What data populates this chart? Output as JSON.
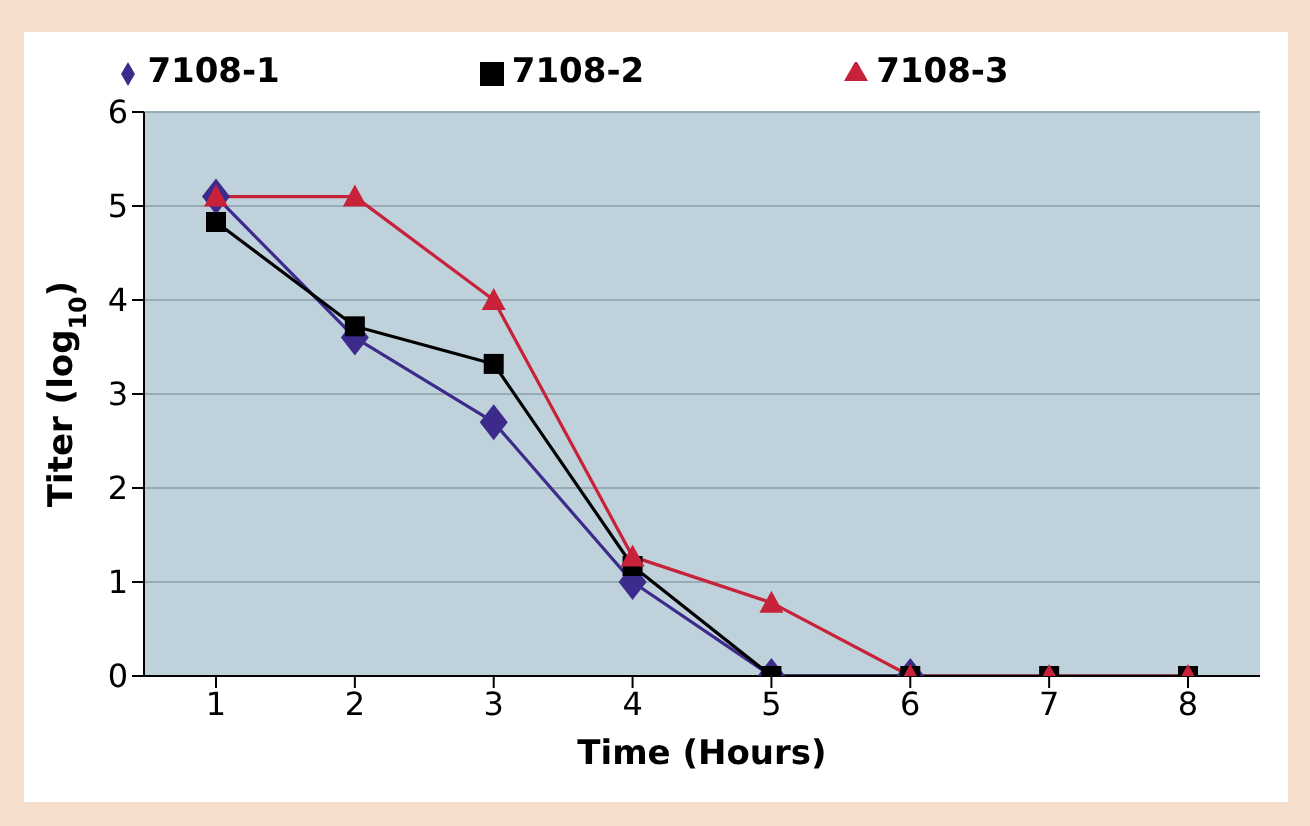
{
  "chart_data": {
    "type": "line",
    "xlabel": "Time (Hours)",
    "ylabel": "Titer (log$_{10}$)",
    "categories": [
      "1",
      "2",
      "3",
      "4",
      "5",
      "6",
      "7",
      "8"
    ],
    "series": [
      {
        "name": "7108-1",
        "color": "#3d2b8c",
        "marker": "diamond",
        "values": [
          5.1,
          3.6,
          2.7,
          1.0,
          0,
          0,
          null,
          null
        ]
      },
      {
        "name": "7108-2",
        "color": "#000000",
        "marker": "square",
        "values": [
          4.83,
          3.72,
          3.32,
          1.17,
          0,
          0,
          0,
          0
        ]
      },
      {
        "name": "7108-3",
        "color": "#c8213a",
        "marker": "triangle",
        "values": [
          5.1,
          5.1,
          4.0,
          1.27,
          0.78,
          0,
          0,
          0
        ]
      }
    ],
    "ylim": [
      0,
      6
    ],
    "yticks": [
      0,
      1,
      2,
      3,
      4,
      5,
      6
    ],
    "grid": "y",
    "legend": "top",
    "line_style": "solid"
  }
}
